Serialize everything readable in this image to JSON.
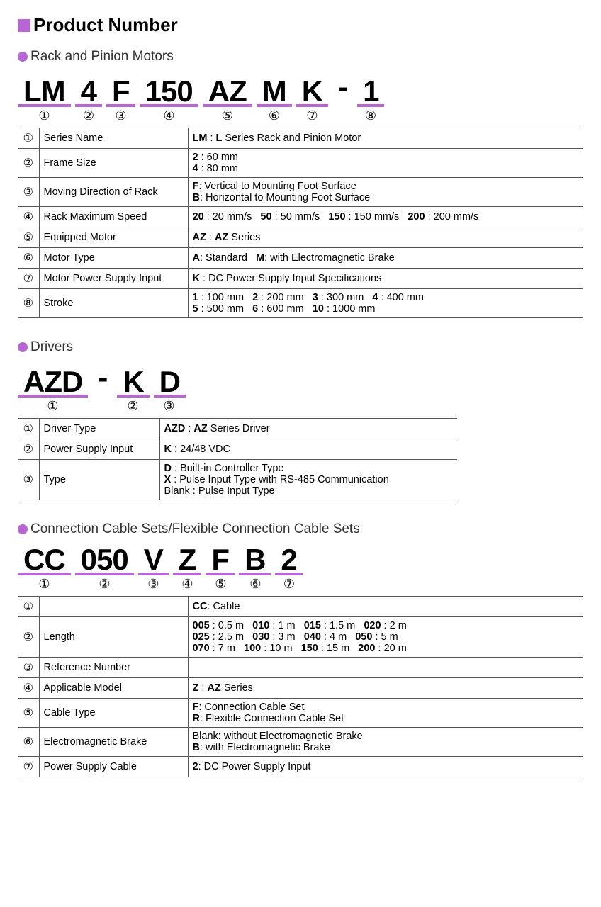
{
  "colors": {
    "accent": "#b866d4",
    "border": "#555555",
    "text": "#000000",
    "subtitle": "#333333"
  },
  "mainTitle": "Product Number",
  "sections": [
    {
      "title": "Rack and Pinion Motors",
      "codeParts": [
        "LM",
        "4",
        "F",
        "150",
        "AZ",
        "M",
        "K",
        "-",
        "1"
      ],
      "underlineSkip": [
        7
      ],
      "numbers": [
        "①",
        "②",
        "③",
        "④",
        "⑤",
        "⑥",
        "⑦",
        "",
        "⑧"
      ],
      "rows": [
        {
          "num": "①",
          "label": "Series Name",
          "desc": "<b>LM</b> : <b>L</b> Series Rack and Pinion Motor"
        },
        {
          "num": "②",
          "label": "Frame Size",
          "desc": "<b>2</b> : 60 mm<br><b>4</b> : 80 mm"
        },
        {
          "num": "③",
          "label": "Moving Direction of Rack",
          "desc": "<b>F</b>: Vertical to Mounting Foot Surface<br><b>B</b>: Horizontal to Mounting Foot Surface"
        },
        {
          "num": "④",
          "label": "Rack Maximum Speed",
          "desc": "<b>20</b> : 20 mm/s&nbsp;&nbsp;&nbsp;<b>50</b> : 50 mm/s&nbsp;&nbsp;&nbsp;<b>150</b> : 150 mm/s&nbsp;&nbsp;&nbsp;<b>200</b> : 200 mm/s"
        },
        {
          "num": "⑤",
          "label": "Equipped Motor",
          "desc": "<b>AZ</b> : <b>AZ</b> Series"
        },
        {
          "num": "⑥",
          "label": "Motor Type",
          "desc": "<b>A</b>: Standard&nbsp;&nbsp;&nbsp;<b>M</b>: with Electromagnetic Brake"
        },
        {
          "num": "⑦",
          "label": "Motor Power Supply Input",
          "desc": "<b>K</b> : DC Power Supply Input Specifications"
        },
        {
          "num": "⑧",
          "label": "Stroke",
          "desc": "<b>1</b> : 100 mm&nbsp;&nbsp;&nbsp;<b>2</b> : 200 mm&nbsp;&nbsp;&nbsp;<b>3</b> : 300 mm&nbsp;&nbsp;&nbsp;<b>4</b> : 400 mm<br><b>5</b> : 500 mm&nbsp;&nbsp;&nbsp;<b>6</b> : 600 mm&nbsp;&nbsp;&nbsp;<b>10</b> : 1000 mm"
        }
      ]
    },
    {
      "title": "Drivers",
      "codeParts": [
        "AZD",
        "-",
        "K",
        "D"
      ],
      "underlineSkip": [
        1
      ],
      "numbers": [
        "①",
        "",
        "②",
        "③"
      ],
      "labelWidth": "170px",
      "rows": [
        {
          "num": "①",
          "label": "Driver Type",
          "desc": "<b>AZD</b> : <b>AZ</b> Series Driver"
        },
        {
          "num": "②",
          "label": "Power Supply Input",
          "desc": "<b>K</b> : 24/48 VDC"
        },
        {
          "num": "③",
          "label": "Type",
          "desc": "<b>D</b> : Built-in Controller Type<br><b>X</b> : Pulse Input Type with RS-485 Communication<br>Blank : Pulse Input Type"
        }
      ],
      "tableWidth": "620px"
    },
    {
      "title": "Connection Cable Sets/Flexible Connection Cable Sets",
      "codeParts": [
        "CC",
        "050",
        "V",
        "Z",
        "F",
        "B",
        "2"
      ],
      "underlineSkip": [],
      "numbers": [
        "①",
        "②",
        "③",
        "④",
        "⑤",
        "⑥",
        "⑦"
      ],
      "rows": [
        {
          "num": "①",
          "label": "",
          "desc": "<b>CC</b>: Cable"
        },
        {
          "num": "②",
          "label": "Length",
          "desc": "<b>005</b> : 0.5 m&nbsp;&nbsp;&nbsp;<b>010</b> : 1 m&nbsp;&nbsp;&nbsp;<b>015</b> : 1.5 m&nbsp;&nbsp;&nbsp;<b>020</b> : 2 m<br><b>025</b> : 2.5 m&nbsp;&nbsp;&nbsp;<b>030</b> : 3 m&nbsp;&nbsp;&nbsp;<b>040</b> : 4 m&nbsp;&nbsp;&nbsp;<b>050</b> : 5 m<br><b>070</b> : 7 m&nbsp;&nbsp;&nbsp;<b>100</b> : 10 m&nbsp;&nbsp;&nbsp;<b>150</b> : 15 m&nbsp;&nbsp;&nbsp;<b>200</b> : 20 m"
        },
        {
          "num": "③",
          "label": "Reference Number",
          "desc": ""
        },
        {
          "num": "④",
          "label": "Applicable Model",
          "desc": "<b>Z</b> : <b>AZ</b> Series"
        },
        {
          "num": "⑤",
          "label": "Cable Type",
          "desc": "<b>F</b>: Connection Cable Set<br><b>R</b>: Flexible Connection Cable Set"
        },
        {
          "num": "⑥",
          "label": "Electromagnetic Brake",
          "desc": "Blank: without Electromagnetic Brake<br><b>B</b>: with Electromagnetic Brake"
        },
        {
          "num": "⑦",
          "label": "Power Supply Cable",
          "desc": "<b>2</b>: DC Power Supply Input"
        }
      ]
    }
  ]
}
